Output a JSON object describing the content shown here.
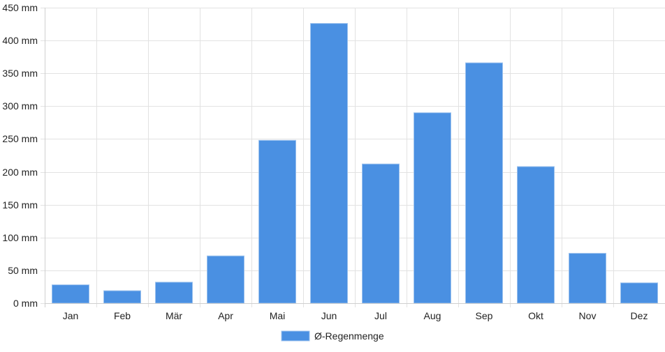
{
  "colors": {
    "bar_fill": "#4a90e2",
    "bar_stroke": "#9cc2ee",
    "grid": "#e2e2e2",
    "axis": "#cfcfcf",
    "text": "#222222"
  },
  "chart_data": {
    "type": "bar",
    "categories": [
      "Jan",
      "Feb",
      "Mär",
      "Apr",
      "Mai",
      "Jun",
      "Jul",
      "Aug",
      "Sep",
      "Okt",
      "Nov",
      "Dez"
    ],
    "series": [
      {
        "name": "Ø-Regenmenge",
        "values": [
          28,
          19,
          32,
          72,
          248,
          426,
          212,
          290,
          366,
          208,
          76,
          31
        ]
      }
    ],
    "ylim": [
      0,
      450
    ],
    "y_ticks": [
      0,
      50,
      100,
      150,
      200,
      250,
      300,
      350,
      400,
      450
    ],
    "y_tick_suffix": " mm",
    "grid": true,
    "legend_position": "bottom"
  }
}
